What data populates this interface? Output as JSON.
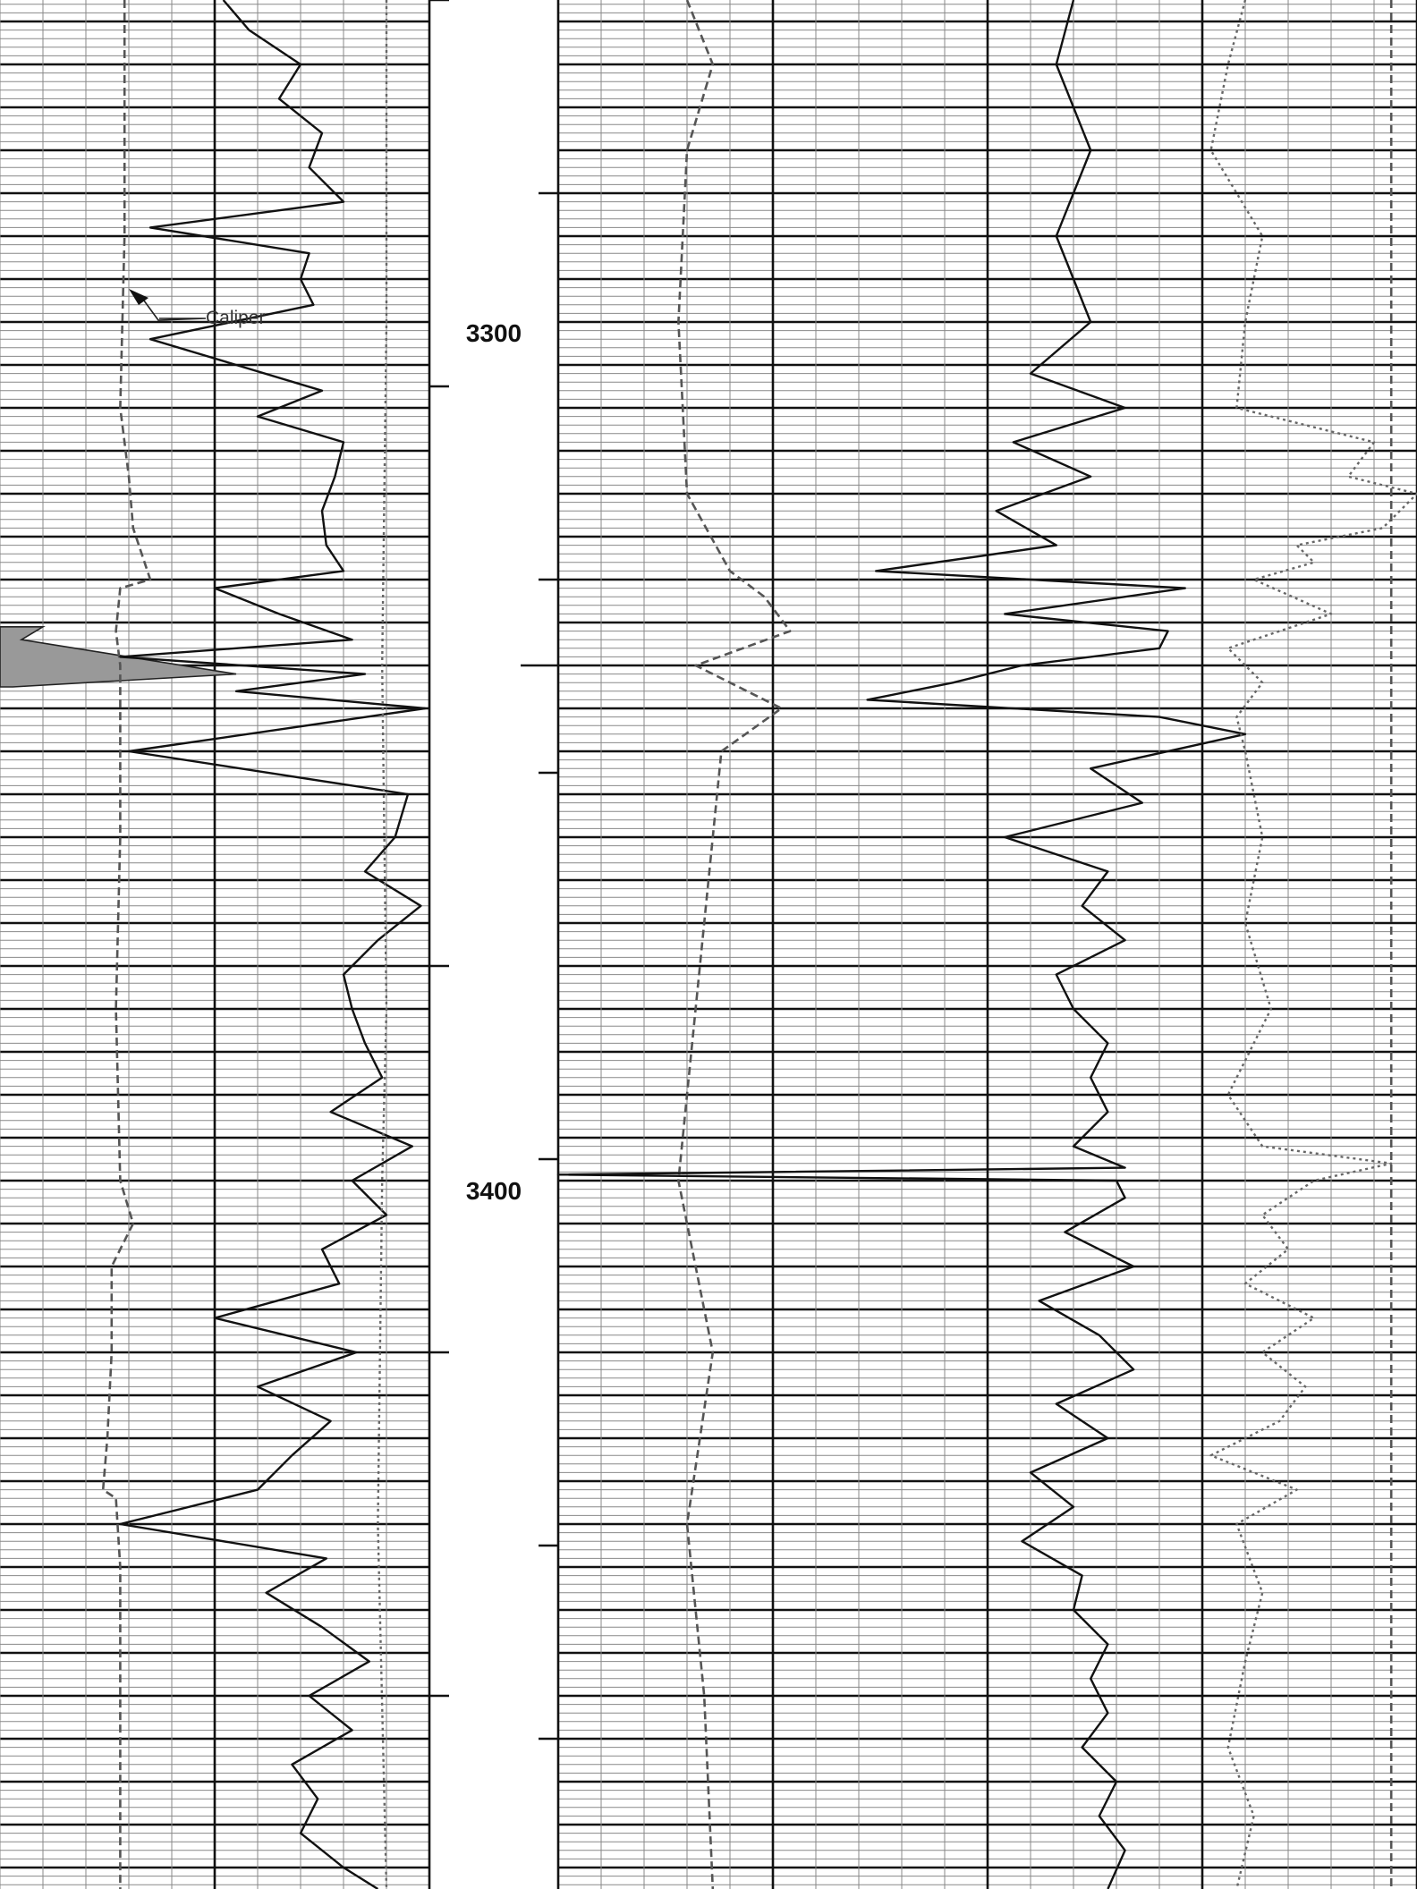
{
  "chart_data": {
    "type": "line",
    "title": "",
    "depth_axis": {
      "ylim": [
        3262.5,
        3482.5
      ],
      "labeled_depths": [
        3300,
        3400
      ],
      "ticks": [
        3260,
        3262.5,
        3285,
        3307.5,
        3330,
        3340,
        3352.5,
        3375,
        3397.5,
        3420,
        3442.5,
        3460,
        3465
      ],
      "grid": true
    },
    "annotations": [
      {
        "text": "Caliper",
        "depth": 3299.5,
        "track": "left",
        "points_to_series": "Caliper"
      }
    ],
    "colors": {
      "grid_major": "#111111",
      "grid_minor": "#888888",
      "curve": "#111111",
      "dashed_curve": "#555555",
      "dotted_curve": "#666666",
      "fill": "#999999"
    },
    "series": [
      {
        "name": "Caliper",
        "track": "left",
        "style": "dashed",
        "depth": [
          3262.5,
          3290,
          3310,
          3318,
          3324,
          3330,
          3331,
          3336,
          3340,
          3360,
          3380,
          3400,
          3405,
          3410,
          3420,
          3430,
          3436,
          3437,
          3445,
          3460,
          3482.5
        ],
        "value": [
          0.29,
          0.29,
          0.28,
          0.3,
          0.31,
          0.35,
          0.28,
          0.27,
          0.28,
          0.28,
          0.27,
          0.28,
          0.31,
          0.26,
          0.26,
          0.25,
          0.24,
          0.27,
          0.28,
          0.28,
          0.28
        ]
      },
      {
        "name": "",
        "track": "left",
        "style": "solid",
        "depth": [
          3262.5,
          3266,
          3270,
          3274,
          3278,
          3282,
          3286,
          3289,
          3292,
          3295,
          3298,
          3302,
          3305,
          3308,
          3311,
          3314,
          3318,
          3322,
          3326,
          3329,
          3331,
          3334,
          3337,
          3339,
          3341,
          3343,
          3345,
          3350,
          3355,
          3360,
          3364,
          3368,
          3372,
          3376,
          3380,
          3384,
          3388,
          3392,
          3396,
          3400,
          3404,
          3408,
          3412,
          3416,
          3420,
          3424,
          3428,
          3432,
          3436,
          3440,
          3444,
          3448,
          3452,
          3456,
          3460,
          3464,
          3468,
          3472,
          3476,
          3480,
          3482.5
        ],
        "value": [
          0.52,
          0.58,
          0.7,
          0.65,
          0.75,
          0.72,
          0.8,
          0.35,
          0.72,
          0.7,
          0.73,
          0.35,
          0.55,
          0.75,
          0.6,
          0.8,
          0.78,
          0.75,
          0.76,
          0.8,
          0.5,
          0.65,
          0.82,
          0.28,
          0.85,
          0.55,
          0.99,
          0.3,
          0.95,
          0.92,
          0.85,
          0.98,
          0.88,
          0.8,
          0.82,
          0.85,
          0.89,
          0.77,
          0.96,
          0.82,
          0.9,
          0.75,
          0.79,
          0.5,
          0.83,
          0.6,
          0.77,
          0.68,
          0.6,
          0.28,
          0.76,
          0.62,
          0.75,
          0.86,
          0.72,
          0.82,
          0.68,
          0.74,
          0.7,
          0.8,
          0.88
        ]
      },
      {
        "name": "",
        "track": "left",
        "style": "dotted",
        "depth": [
          3262.5,
          3300,
          3340,
          3380,
          3400,
          3440,
          3482.5
        ],
        "value": [
          0.9,
          0.9,
          0.89,
          0.9,
          0.89,
          0.88,
          0.9
        ]
      },
      {
        "name": "",
        "track": "left",
        "style": "fill",
        "depth": [
          3335.5,
          3337,
          3339,
          3341,
          3342.5
        ],
        "value": [
          0.1,
          0.05,
          0.3,
          0.55,
          0.03
        ]
      },
      {
        "name": "",
        "track": "right",
        "style": "dashed",
        "depth": [
          3262.5,
          3270,
          3280,
          3300,
          3320,
          3329,
          3332,
          3336,
          3340,
          3345,
          3350,
          3360,
          3380,
          3400,
          3420,
          3440,
          3460,
          3482.5
        ],
        "value": [
          0.15,
          0.18,
          0.15,
          0.14,
          0.15,
          0.2,
          0.24,
          0.27,
          0.16,
          0.26,
          0.19,
          0.18,
          0.16,
          0.14,
          0.18,
          0.15,
          0.17,
          0.18
        ]
      },
      {
        "name": "",
        "track": "right",
        "style": "solid",
        "depth": [
          3262.5,
          3270,
          3280,
          3290,
          3300,
          3306,
          3310,
          3314,
          3318,
          3322,
          3326,
          3329,
          3331,
          3334,
          3336,
          3338,
          3340,
          3342,
          3344,
          3346,
          3348,
          3352,
          3356,
          3360,
          3364,
          3368,
          3372,
          3376,
          3380,
          3384,
          3388,
          3392,
          3396,
          3398.5,
          3399.3,
          3400,
          3402,
          3406,
          3410,
          3414,
          3418,
          3422,
          3426,
          3430,
          3434,
          3438,
          3442,
          3446,
          3450,
          3454,
          3458,
          3462,
          3466,
          3470,
          3474,
          3478,
          3482.5
        ],
        "value": [
          0.6,
          0.58,
          0.62,
          0.58,
          0.62,
          0.55,
          0.66,
          0.53,
          0.62,
          0.51,
          0.58,
          0.37,
          0.73,
          0.52,
          0.71,
          0.7,
          0.54,
          0.46,
          0.36,
          0.7,
          0.8,
          0.62,
          0.68,
          0.52,
          0.64,
          0.61,
          0.66,
          0.58,
          0.6,
          0.64,
          0.62,
          0.64,
          0.6,
          0.66,
          0.0,
          0.65,
          0.66,
          0.59,
          0.67,
          0.56,
          0.63,
          0.67,
          0.58,
          0.64,
          0.55,
          0.6,
          0.54,
          0.61,
          0.6,
          0.64,
          0.62,
          0.64,
          0.61,
          0.65,
          0.63,
          0.66,
          0.64
        ]
      },
      {
        "name": "",
        "track": "right",
        "style": "dotted",
        "depth": [
          3262.5,
          3270,
          3280,
          3290,
          3300,
          3310,
          3314,
          3318,
          3320,
          3324,
          3326,
          3328,
          3330,
          3334,
          3338,
          3342,
          3346,
          3350,
          3360,
          3370,
          3380,
          3390,
          3396,
          3398,
          3400,
          3404,
          3408,
          3412,
          3416,
          3420,
          3424,
          3428,
          3432,
          3436,
          3440,
          3448,
          3456,
          3466,
          3474,
          3482.5
        ],
        "value": [
          0.8,
          0.78,
          0.76,
          0.82,
          0.8,
          0.79,
          0.95,
          0.92,
          1.0,
          0.96,
          0.86,
          0.88,
          0.81,
          0.9,
          0.78,
          0.82,
          0.79,
          0.8,
          0.82,
          0.8,
          0.83,
          0.78,
          0.82,
          0.97,
          0.88,
          0.82,
          0.85,
          0.8,
          0.88,
          0.82,
          0.87,
          0.84,
          0.76,
          0.86,
          0.79,
          0.82,
          0.8,
          0.78,
          0.81,
          0.79
        ]
      },
      {
        "name": "",
        "track": "right",
        "style": "dashed",
        "depth": [
          3262.5,
          3482.5
        ],
        "value": [
          0.97,
          0.97
        ]
      }
    ]
  }
}
